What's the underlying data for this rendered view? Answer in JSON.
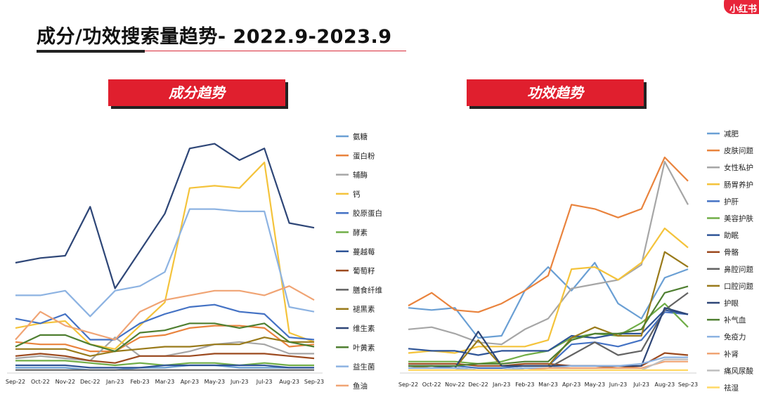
{
  "page": {
    "title": "成分/功效搜索量趋势- 2022.9-2023.9",
    "logo": "小红书",
    "colors": {
      "accent": "#e01f2e",
      "underline": "#222222"
    }
  },
  "chart_data": [
    {
      "type": "line",
      "title": "成分趋势",
      "categories": [
        "Sep-22",
        "Oct-22",
        "Nov-22",
        "Dec-22",
        "Jan-23",
        "Feb-23",
        "Mar-23",
        "Apr-23",
        "May-23",
        "Jun-23",
        "Jul-23",
        "Aug-23",
        "Sep-23"
      ],
      "ylim": [
        0,
        100
      ],
      "legend_position": "right",
      "series": [
        {
          "name": "氨糖",
          "color": "#6a9fd4",
          "values": [
            2,
            2,
            2,
            1,
            1,
            2,
            2,
            3,
            3,
            2,
            2,
            2,
            2
          ]
        },
        {
          "name": "蛋白粉",
          "color": "#e9833d",
          "values": [
            13,
            12,
            12,
            9,
            9,
            15,
            16,
            19,
            20,
            20,
            19,
            11,
            12
          ]
        },
        {
          "name": "辅酶",
          "color": "#a6a6a6",
          "values": [
            6,
            7,
            6,
            5,
            15,
            7,
            7,
            9,
            12,
            13,
            12,
            8,
            8
          ]
        },
        {
          "name": "钙",
          "color": "#f4c33b",
          "values": [
            19,
            21,
            22,
            12,
            10,
            20,
            30,
            79,
            80,
            79,
            90,
            17,
            13
          ]
        },
        {
          "name": "胶原蛋白",
          "color": "#4472c4",
          "values": [
            23,
            21,
            25,
            14,
            14,
            21,
            25,
            28,
            29,
            26,
            25,
            15,
            14
          ]
        },
        {
          "name": "酵素",
          "color": "#70ad47",
          "values": [
            5,
            5,
            5,
            4,
            3,
            4,
            3,
            4,
            4,
            3,
            4,
            3,
            3
          ]
        },
        {
          "name": "蔓越莓",
          "color": "#2f5597",
          "values": [
            3,
            3,
            3,
            2,
            2,
            2,
            3,
            3,
            3,
            3,
            3,
            2,
            2
          ]
        },
        {
          "name": "葡萄籽",
          "color": "#9c4a1f",
          "values": [
            7,
            8,
            7,
            5,
            4,
            7,
            7,
            7,
            8,
            8,
            8,
            7,
            6
          ]
        },
        {
          "name": "膳食纤维",
          "color": "#636363",
          "values": [
            1,
            1,
            1,
            1,
            1,
            1,
            1,
            1,
            1,
            1,
            1,
            1,
            1
          ]
        },
        {
          "name": "褪黑素",
          "color": "#997a1a",
          "values": [
            10,
            10,
            10,
            7,
            9,
            10,
            11,
            11,
            12,
            12,
            15,
            13,
            13
          ]
        },
        {
          "name": "维生素",
          "color": "#2e4677",
          "values": [
            47,
            49,
            50,
            71,
            36,
            52,
            68,
            96,
            98,
            91,
            96,
            64,
            62
          ]
        },
        {
          "name": "叶黄素",
          "color": "#4f7f31",
          "values": [
            11,
            16,
            16,
            12,
            9,
            17,
            18,
            21,
            21,
            19,
            21,
            13,
            11
          ]
        },
        {
          "name": "益生菌",
          "color": "#8db3e2",
          "values": [
            33,
            33,
            35,
            24,
            35,
            37,
            43,
            70,
            70,
            69,
            69,
            28,
            26
          ]
        },
        {
          "name": "鱼油",
          "color": "#f0a474",
          "values": [
            14,
            26,
            20,
            17,
            14,
            26,
            31,
            33,
            35,
            35,
            33,
            37,
            31
          ]
        }
      ]
    },
    {
      "type": "line",
      "title": "功效趋势",
      "categories": [
        "Sep-22",
        "Oct-22",
        "Nov-22",
        "Dec-22",
        "Jan-23",
        "Feb-23",
        "Mar-23",
        "Apr-23",
        "May-23",
        "Jun-23",
        "Jul-23",
        "Aug-23",
        "Sep-23"
      ],
      "ylim": [
        0,
        100
      ],
      "legend_position": "right",
      "series": [
        {
          "name": "减肥",
          "color": "#6a9fd4",
          "values": [
            30,
            29,
            30,
            16,
            17,
            38,
            49,
            38,
            51,
            32,
            25,
            44,
            48
          ]
        },
        {
          "name": "皮肤问题",
          "color": "#e9833d",
          "values": [
            31,
            37,
            29,
            28,
            32,
            38,
            45,
            78,
            76,
            72,
            76,
            100,
            89
          ]
        },
        {
          "name": "女性私护",
          "color": "#a6a6a6",
          "values": [
            20,
            21,
            18,
            14,
            13,
            20,
            25,
            39,
            41,
            43,
            50,
            98,
            78
          ]
        },
        {
          "name": "肠胃养护",
          "color": "#f4c33b",
          "values": [
            9,
            10,
            9,
            12,
            12,
            12,
            15,
            48,
            49,
            43,
            51,
            67,
            58
          ]
        },
        {
          "name": "护肝",
          "color": "#4472c4",
          "values": [
            3,
            3,
            3,
            2,
            2,
            3,
            3,
            13,
            14,
            12,
            15,
            28,
            27
          ]
        },
        {
          "name": "美容护肤",
          "color": "#70ad47",
          "values": [
            5,
            5,
            5,
            4,
            5,
            8,
            10,
            16,
            18,
            17,
            23,
            32,
            21
          ]
        },
        {
          "name": "助眠",
          "color": "#2f5597",
          "values": [
            11,
            10,
            10,
            8,
            10,
            10,
            10,
            17,
            16,
            18,
            18,
            29,
            27
          ]
        },
        {
          "name": "骨骼",
          "color": "#9c4a1f",
          "values": [
            4,
            4,
            4,
            3,
            3,
            4,
            4,
            3,
            3,
            2,
            3,
            9,
            8
          ]
        },
        {
          "name": "鼻腔问题",
          "color": "#636363",
          "values": [
            2,
            2,
            2,
            1,
            1,
            2,
            2,
            8,
            14,
            8,
            10,
            29,
            37
          ]
        },
        {
          "name": "口腔问题",
          "color": "#997a1a",
          "values": [
            2,
            3,
            2,
            15,
            3,
            3,
            3,
            16,
            21,
            17,
            17,
            56,
            49
          ]
        },
        {
          "name": "护眼",
          "color": "#2e4677",
          "values": [
            3,
            3,
            2,
            19,
            3,
            3,
            3,
            3,
            3,
            3,
            3,
            30,
            27
          ]
        },
        {
          "name": "补气血",
          "color": "#4f7f31",
          "values": [
            3,
            3,
            3,
            4,
            4,
            5,
            5,
            15,
            18,
            18,
            20,
            37,
            40
          ]
        },
        {
          "name": "免疫力",
          "color": "#8db3e2",
          "values": [
            2,
            2,
            2,
            1,
            1,
            2,
            2,
            3,
            3,
            3,
            4,
            7,
            7
          ]
        },
        {
          "name": "补肾",
          "color": "#f0a474",
          "values": [
            1,
            1,
            1,
            1,
            1,
            1,
            2,
            2,
            2,
            2,
            2,
            5,
            5
          ]
        },
        {
          "name": "痛风尿酸",
          "color": "#bfbfbf",
          "values": [
            1,
            1,
            1,
            1,
            1,
            1,
            1,
            1,
            1,
            1,
            1,
            6,
            6
          ]
        },
        {
          "name": "祛湿",
          "color": "#ffd966",
          "values": [
            1,
            1,
            1,
            1,
            1,
            1,
            1,
            1,
            1,
            1,
            1,
            1,
            1
          ]
        }
      ]
    }
  ]
}
